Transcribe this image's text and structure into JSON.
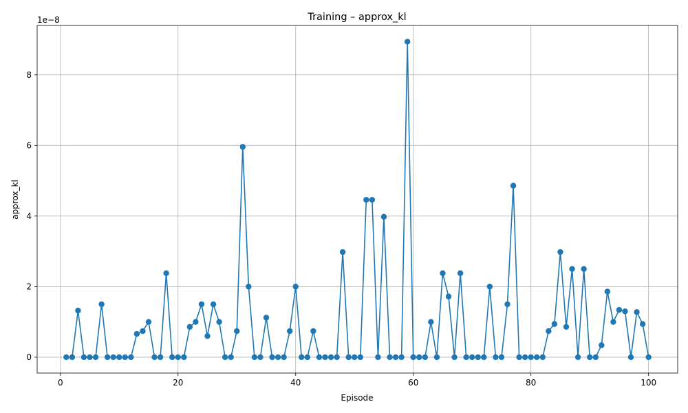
{
  "chart_data": {
    "type": "line",
    "title": "Training – approx_kl",
    "xlabel": "Episode",
    "ylabel": "approx_kl",
    "offset_text": "1e−8",
    "xlim": [
      -3.95,
      104.95
    ],
    "ylim": [
      -4.5e-09,
      9.4e-08
    ],
    "xticks": [
      0,
      20,
      40,
      60,
      80,
      100
    ],
    "yticks": [
      0,
      2e-08,
      4e-08,
      6e-08,
      8e-08
    ],
    "ytick_labels": [
      "0",
      "2",
      "4",
      "6",
      "8"
    ],
    "grid": true,
    "color": "#1f77b4",
    "series": [
      {
        "x": [
          1,
          2,
          3,
          4,
          5,
          6,
          7,
          8,
          9,
          10,
          11,
          12,
          13,
          14,
          15,
          16,
          17,
          18,
          19,
          20,
          21,
          22,
          23,
          24,
          25,
          26,
          27,
          28,
          29,
          30,
          31,
          32,
          33,
          34,
          35,
          36,
          37,
          38,
          39,
          40,
          41,
          42,
          43,
          44,
          45,
          46,
          47,
          48,
          49,
          50,
          51,
          52,
          53,
          54,
          55,
          56,
          57,
          58,
          59,
          60,
          61,
          62,
          63,
          64,
          65,
          66,
          67,
          68,
          69,
          70,
          71,
          72,
          73,
          74,
          75,
          76,
          77,
          78,
          79,
          80,
          81,
          82,
          83,
          84,
          85,
          86,
          87,
          88,
          89,
          90,
          91,
          92,
          93,
          94,
          95,
          96,
          97,
          98,
          99,
          100
        ],
        "y": [
          0,
          0,
          1.32e-08,
          0,
          0,
          0,
          1.5e-08,
          0,
          0,
          0,
          0,
          0,
          6.6e-09,
          7.4e-09,
          1e-08,
          0,
          0,
          2.38e-08,
          0,
          0,
          0,
          8.6e-09,
          1e-08,
          1.5e-08,
          6e-09,
          1.5e-08,
          1e-08,
          0,
          0,
          7.4e-09,
          5.96e-08,
          2e-08,
          0,
          0,
          1.12e-08,
          0,
          0,
          0,
          7.4e-09,
          2e-08,
          0,
          0,
          7.4e-09,
          0,
          0,
          0,
          0,
          2.98e-08,
          0,
          0,
          0,
          4.46e-08,
          4.46e-08,
          0,
          3.98e-08,
          0,
          0,
          0,
          8.94e-08,
          0,
          0,
          0,
          1e-08,
          0,
          2.38e-08,
          1.72e-08,
          0,
          2.38e-08,
          0,
          0,
          0,
          0,
          2e-08,
          0,
          0,
          1.5e-08,
          4.86e-08,
          0,
          0,
          0,
          0,
          0,
          7.4e-09,
          9.4e-09,
          2.98e-08,
          8.6e-09,
          2.5e-08,
          0,
          2.5e-08,
          0,
          0,
          3.4e-09,
          1.86e-08,
          1e-08,
          1.34e-08,
          1.3e-08,
          0,
          1.28e-08,
          9.4e-09,
          0
        ]
      }
    ]
  }
}
